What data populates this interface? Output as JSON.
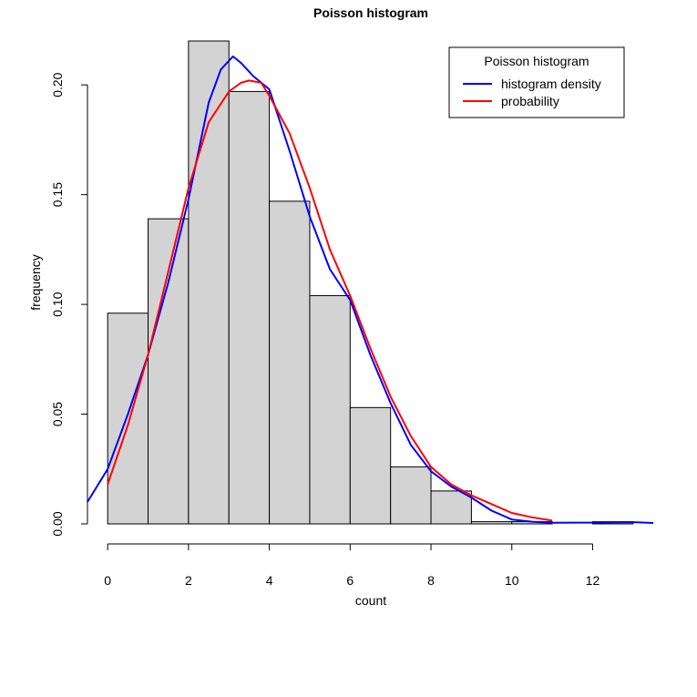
{
  "chart_data": {
    "type": "bar",
    "title": "Poisson histogram",
    "xlabel": "count",
    "ylabel": "frequency",
    "xlim": [
      -0.5,
      13.5
    ],
    "ylim": [
      0,
      0.22
    ],
    "x_ticks": [
      "0",
      "2",
      "4",
      "6",
      "8",
      "10",
      "12"
    ],
    "y_ticks": [
      "0.00",
      "0.05",
      "0.10",
      "0.15",
      "0.20"
    ],
    "bar_color": "#d3d3d3",
    "bins": [
      {
        "from": 0,
        "to": 1,
        "value": 0.096
      },
      {
        "from": 1,
        "to": 2,
        "value": 0.139
      },
      {
        "from": 2,
        "to": 3,
        "value": 0.22
      },
      {
        "from": 3,
        "to": 4,
        "value": 0.197
      },
      {
        "from": 4,
        "to": 5,
        "value": 0.147
      },
      {
        "from": 5,
        "to": 6,
        "value": 0.104
      },
      {
        "from": 6,
        "to": 7,
        "value": 0.053
      },
      {
        "from": 7,
        "to": 8,
        "value": 0.026
      },
      {
        "from": 8,
        "to": 9,
        "value": 0.015
      },
      {
        "from": 9,
        "to": 10,
        "value": 0.001
      },
      {
        "from": 10,
        "to": 11,
        "value": 0.001
      },
      {
        "from": 11,
        "to": 12,
        "value": 0.0
      },
      {
        "from": 12,
        "to": 13,
        "value": 0.001
      }
    ],
    "series": [
      {
        "name": "histogram density",
        "color": "#0000ff",
        "x": [
          -0.5,
          0,
          0.5,
          1,
          1.5,
          2,
          2.5,
          2.8,
          3.1,
          3.3,
          3.6,
          4,
          4.5,
          5,
          5.5,
          6,
          6.5,
          7,
          7.5,
          8,
          8.5,
          9,
          9.5,
          10,
          10.5,
          11,
          12,
          13,
          13.5
        ],
        "y": [
          0.01,
          0.025,
          0.05,
          0.077,
          0.11,
          0.148,
          0.192,
          0.207,
          0.213,
          0.21,
          0.204,
          0.198,
          0.17,
          0.14,
          0.116,
          0.102,
          0.077,
          0.055,
          0.036,
          0.024,
          0.017,
          0.012,
          0.006,
          0.002,
          0.001,
          0.0005,
          0.0006,
          0.0008,
          0.0004
        ]
      },
      {
        "name": "probability",
        "color": "#ff0000",
        "x": [
          0,
          0.5,
          1,
          1.5,
          2,
          2.5,
          3,
          3.3,
          3.5,
          3.8,
          4,
          4.5,
          5,
          5.5,
          6,
          6.5,
          7,
          7.5,
          8,
          8.5,
          9,
          9.5,
          10,
          10.5,
          11
        ],
        "y": [
          0.018,
          0.045,
          0.077,
          0.115,
          0.153,
          0.183,
          0.197,
          0.201,
          0.202,
          0.201,
          0.195,
          0.178,
          0.153,
          0.125,
          0.104,
          0.08,
          0.058,
          0.04,
          0.026,
          0.018,
          0.013,
          0.009,
          0.005,
          0.003,
          0.0015
        ]
      }
    ],
    "legend": {
      "title": "Poisson histogram",
      "position": "top-right",
      "entries": [
        "histogram density",
        "probability"
      ]
    }
  }
}
